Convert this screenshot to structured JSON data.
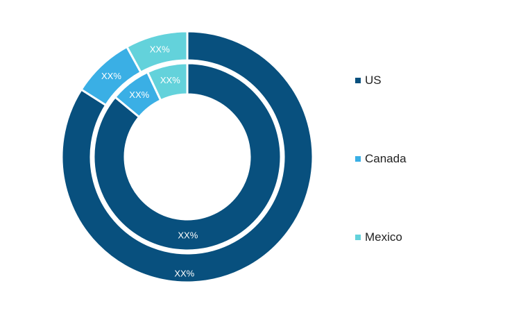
{
  "chart_data": {
    "type": "pie",
    "subtype": "nested-donut",
    "categories": [
      "US",
      "Canada",
      "Mexico"
    ],
    "colors": [
      "#08507e",
      "#3aafe5",
      "#63d2db"
    ],
    "series": [
      {
        "ring": "outer",
        "values": [
          84,
          8,
          8
        ],
        "labels": [
          "XX%",
          "XX%",
          "XX%"
        ]
      },
      {
        "ring": "inner",
        "values": [
          86,
          7,
          7
        ],
        "labels": [
          "XX%",
          "XX%",
          "XX%"
        ]
      }
    ],
    "legend_position": "right"
  },
  "legend": {
    "items": [
      {
        "label": "US",
        "color": "#08507e"
      },
      {
        "label": "Canada",
        "color": "#3aafe5"
      },
      {
        "label": "Mexico",
        "color": "#63d2db"
      }
    ]
  }
}
